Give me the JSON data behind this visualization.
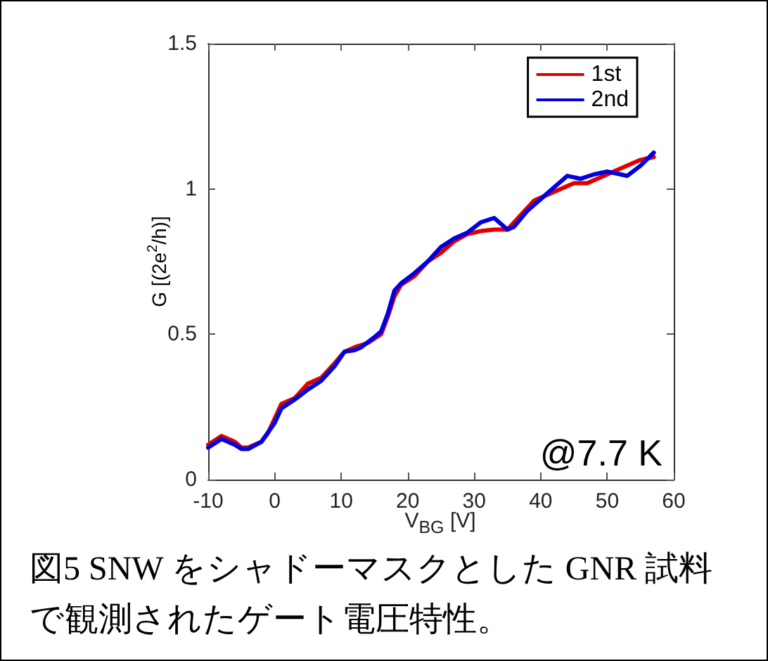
{
  "chart_data": {
    "type": "line",
    "xlabel": "V$_{BG}$ [V]",
    "ylabel": "G [(2e$^{2}$/h)]",
    "xlim": [
      -10,
      60
    ],
    "xticks": [
      -10,
      0,
      10,
      20,
      30,
      40,
      50,
      60
    ],
    "ylim": [
      0,
      1.5
    ],
    "yticks": [
      0,
      0.5,
      1,
      1.5
    ],
    "legend": "top right",
    "line_style": "solid",
    "annotations": [
      "@7.7 K",
      "図5  SNW をシャドーマスクとした GNR 試料で観測されたゲート電圧特性。"
    ],
    "series": [
      {
        "name": "1st",
        "color": "#e00000",
        "x": [
          -10,
          -8,
          -6,
          -5,
          -4,
          -2,
          -1,
          0,
          1,
          3,
          5,
          7,
          9,
          10.5,
          12,
          14,
          16,
          17,
          18,
          19,
          21,
          23,
          25,
          27,
          29,
          31,
          33,
          35,
          37,
          39,
          41,
          43,
          45,
          47,
          49,
          51,
          53,
          55,
          57
        ],
        "values": [
          0.12,
          0.15,
          0.13,
          0.11,
          0.11,
          0.13,
          0.16,
          0.21,
          0.26,
          0.28,
          0.33,
          0.35,
          0.4,
          0.44,
          0.455,
          0.47,
          0.5,
          0.56,
          0.63,
          0.67,
          0.7,
          0.75,
          0.78,
          0.82,
          0.845,
          0.855,
          0.86,
          0.86,
          0.91,
          0.96,
          0.98,
          1.0,
          1.02,
          1.02,
          1.04,
          1.06,
          1.08,
          1.1,
          1.11
        ]
      },
      {
        "name": "2nd",
        "color": "#0000e0",
        "x": [
          -10,
          -8,
          -6,
          -5,
          -4,
          -2,
          0,
          1,
          3,
          5,
          7,
          9,
          10.5,
          12,
          13,
          15,
          16,
          17,
          18,
          19,
          21,
          23,
          25,
          27,
          29,
          31,
          33,
          35,
          36,
          38,
          40,
          42,
          44,
          46,
          48,
          50,
          52,
          53,
          55,
          57
        ],
        "values": [
          0.11,
          0.14,
          0.12,
          0.105,
          0.105,
          0.13,
          0.195,
          0.245,
          0.275,
          0.31,
          0.34,
          0.39,
          0.44,
          0.445,
          0.455,
          0.49,
          0.51,
          0.57,
          0.65,
          0.675,
          0.71,
          0.75,
          0.8,
          0.83,
          0.85,
          0.885,
          0.9,
          0.86,
          0.87,
          0.925,
          0.965,
          1.005,
          1.045,
          1.035,
          1.05,
          1.06,
          1.05,
          1.045,
          1.08,
          1.125
        ]
      }
    ]
  }
}
